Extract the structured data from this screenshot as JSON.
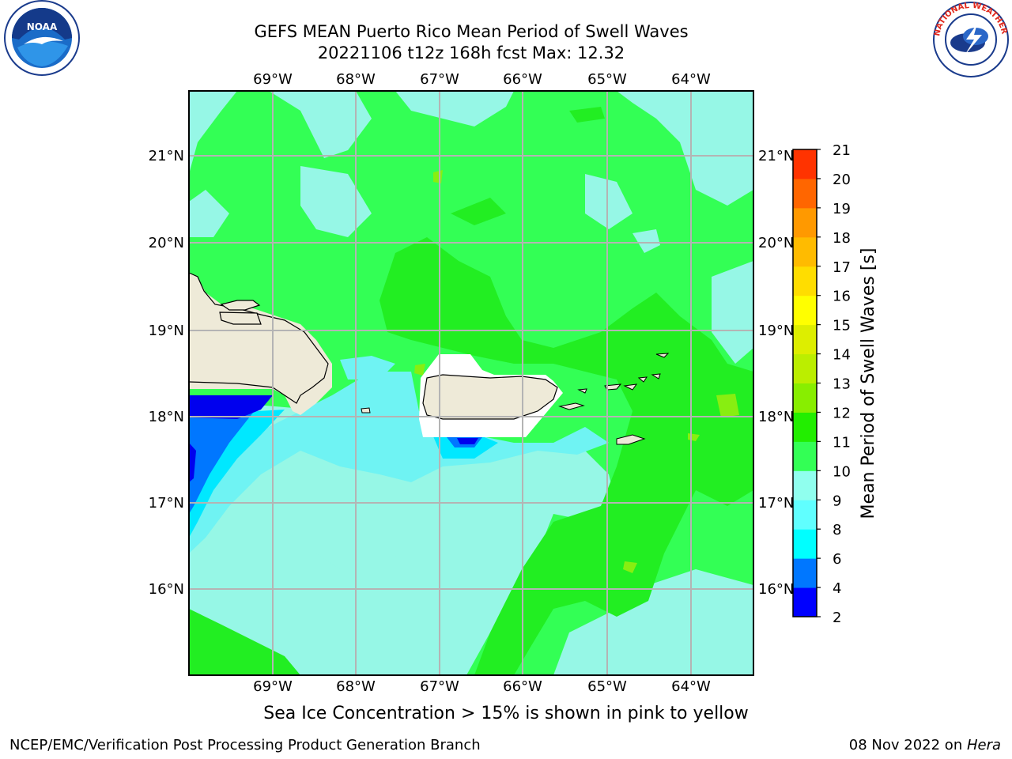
{
  "header": {
    "title_line1": "GEFS MEAN Puerto Rico Mean Period of Swell Waves",
    "title_line2": "20221106 t12z 168h fcst   Max: 12.32"
  },
  "logos": {
    "noaa": {
      "name": "noaa-logo",
      "text": "NOAA"
    },
    "nws": {
      "name": "nws-logo",
      "text": "NATIONAL WEATHER SERVICE"
    }
  },
  "map": {
    "lon_labels": [
      "69°W",
      "68°W",
      "67°W",
      "66°W",
      "65°W",
      "64°W"
    ],
    "lat_labels": [
      "21°N",
      "20°N",
      "19°N",
      "18°N",
      "17°N",
      "16°N"
    ],
    "colors": {
      "c8_9": "#80ffee",
      "c9_10": "#96f7e6",
      "c10_11": "#33ff55",
      "c11_12": "#22ee22",
      "c12_13": "#88ee11",
      "c6_8": "#00e8ff",
      "c4_6": "#0077ff",
      "c2_4": "#0000ee",
      "land": "#eeead8"
    }
  },
  "colorbar": {
    "label": "Mean Period of Swell Waves [s]",
    "ticks": [
      "2",
      "4",
      "6",
      "8",
      "9",
      "10",
      "11",
      "12",
      "13",
      "14",
      "15",
      "16",
      "17",
      "18",
      "19",
      "20",
      "21"
    ],
    "colors": [
      "#0000ff",
      "#0077ff",
      "#00ffff",
      "#60ffff",
      "#90ffee",
      "#33ff55",
      "#22ee00",
      "#88ee00",
      "#bbee00",
      "#ddee00",
      "#ffff00",
      "#ffdd00",
      "#ffbb00",
      "#ff9900",
      "#ff6600",
      "#ff3300"
    ]
  },
  "footer": {
    "note": "Sea Ice Concentration > 15% is shown in pink to yellow",
    "left": "NCEP/EMC/Verification Post Processing Product Generation Branch",
    "right_date": "08 Nov 2022 on ",
    "right_host": "Hera"
  }
}
